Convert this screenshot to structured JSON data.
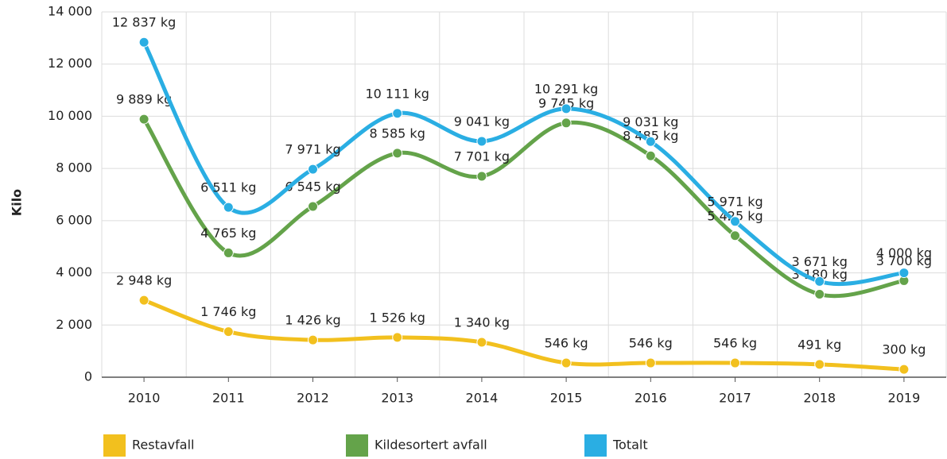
{
  "chart_data": {
    "type": "line",
    "y_label": "Kilo",
    "categories": [
      "2010",
      "2011",
      "2012",
      "2013",
      "2014",
      "2015",
      "2016",
      "2017",
      "2018",
      "2019"
    ],
    "series": [
      {
        "name": "Restavfall",
        "color": "#f2c01e",
        "values": [
          2948,
          1746,
          1426,
          1526,
          1340,
          546,
          546,
          546,
          491,
          300
        ],
        "value_labels": [
          "2 948 kg",
          "1 746 kg",
          "1 426 kg",
          "1 526 kg",
          "1 340 kg",
          "546 kg",
          "546 kg",
          "546 kg",
          "491 kg",
          "300 kg"
        ]
      },
      {
        "name": "Kildesortert avfall",
        "color": "#64a34a",
        "values": [
          9889,
          4765,
          6545,
          8585,
          7701,
          9745,
          8485,
          5425,
          3180,
          3700
        ],
        "value_labels": [
          "9 889 kg",
          "4 765 kg",
          "6 545 kg",
          "8 585 kg",
          "7 701 kg",
          "9 745 kg",
          "8 485 kg",
          "5 425 kg",
          "3 180 kg",
          "3 700 kg"
        ]
      },
      {
        "name": "Totalt",
        "color": "#2aaee3",
        "values": [
          12837,
          6511,
          7971,
          10111,
          9041,
          10291,
          9031,
          5971,
          3671,
          4000
        ],
        "value_labels": [
          "12 837 kg",
          "6 511 kg",
          "7 971 kg",
          "10 111 kg",
          "9 041 kg",
          "10 291 kg",
          "9 031 kg",
          "5 971 kg",
          "3 671 kg",
          "4 000 kg"
        ]
      }
    ],
    "ylim": [
      0,
      14000
    ],
    "yticks": [
      0,
      {
        "value": 2000,
        "label": "2 000"
      },
      {
        "value": 4000,
        "label": "4 000"
      },
      {
        "value": 6000,
        "label": "6 000"
      },
      {
        "value": 8000,
        "label": "8 000"
      },
      {
        "value": 10000,
        "label": "10 000"
      },
      {
        "value": 12000,
        "label": "12 000"
      },
      {
        "value": 14000,
        "label": "14 000"
      }
    ],
    "grid": true,
    "legend": "bottom"
  }
}
